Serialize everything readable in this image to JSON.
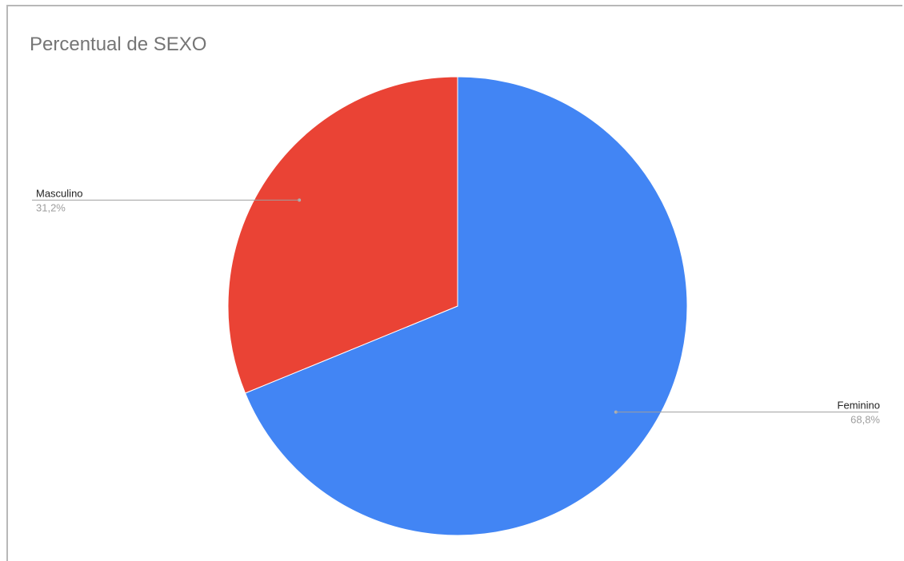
{
  "chart_data": {
    "type": "pie",
    "title": "Percentual de SEXO",
    "categories": [
      "Feminino",
      "Masculino"
    ],
    "values": [
      68.8,
      31.2
    ],
    "labels": [
      "68,8%",
      "31,2%"
    ],
    "colors": [
      "#4285f4",
      "#ea4335"
    ],
    "legend": "labels-outside",
    "start_angle_deg": 0,
    "direction": "clockwise"
  }
}
